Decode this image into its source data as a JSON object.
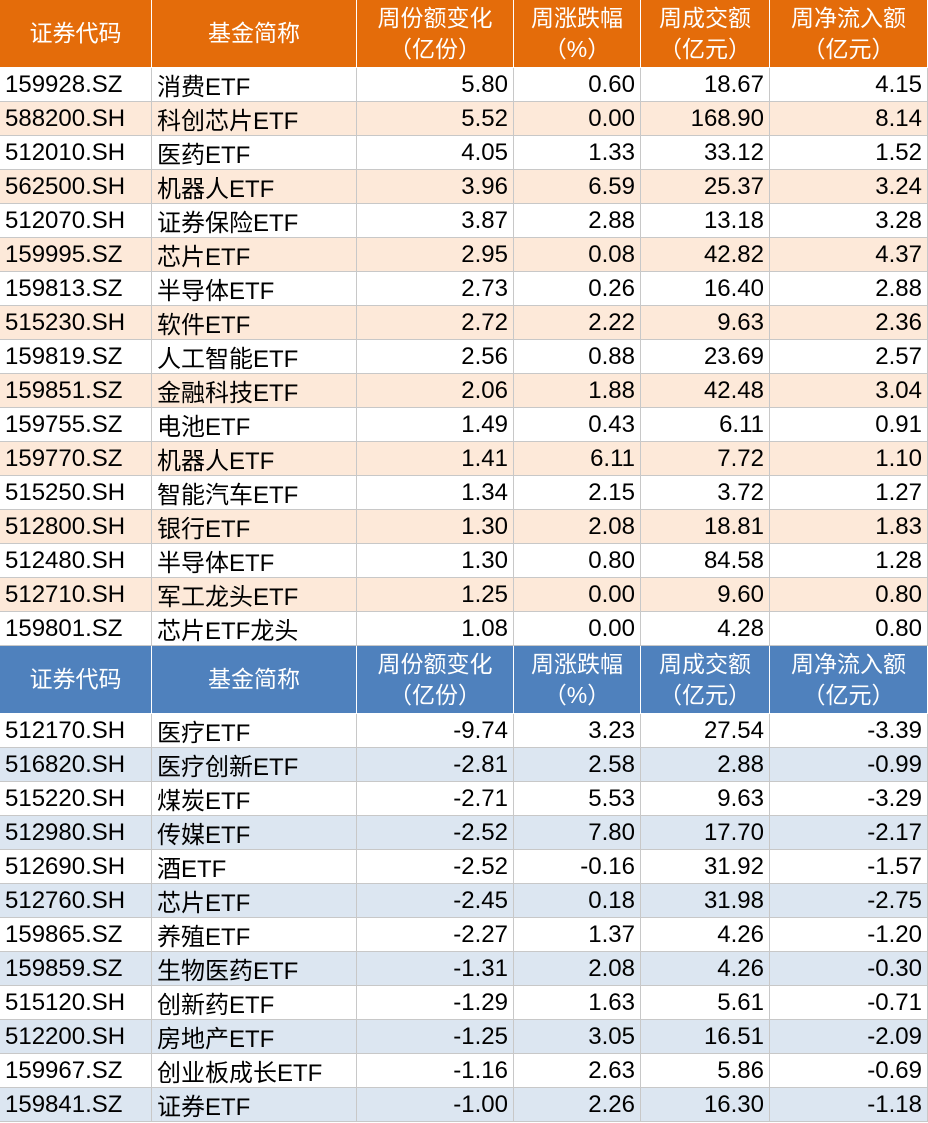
{
  "tables": [
    {
      "header": [
        "证券代码",
        "基金简称",
        [
          "周份额变化",
          "（亿份）"
        ],
        [
          "周涨跌幅",
          "（%）"
        ],
        [
          "周成交额",
          "（亿元）"
        ],
        [
          "周净流入额",
          "（亿元）"
        ]
      ],
      "rows": [
        [
          "159928.SZ",
          "消费ETF",
          "5.80",
          "0.60",
          "18.67",
          "4.15"
        ],
        [
          "588200.SH",
          "科创芯片ETF",
          "5.52",
          "0.00",
          "168.90",
          "8.14"
        ],
        [
          "512010.SH",
          "医药ETF",
          "4.05",
          "1.33",
          "33.12",
          "1.52"
        ],
        [
          "562500.SH",
          "机器人ETF",
          "3.96",
          "6.59",
          "25.37",
          "3.24"
        ],
        [
          "512070.SH",
          "证券保险ETF",
          "3.87",
          "2.88",
          "13.18",
          "3.28"
        ],
        [
          "159995.SZ",
          "芯片ETF",
          "2.95",
          "0.08",
          "42.82",
          "4.37"
        ],
        [
          "159813.SZ",
          "半导体ETF",
          "2.73",
          "0.26",
          "16.40",
          "2.88"
        ],
        [
          "515230.SH",
          "软件ETF",
          "2.72",
          "2.22",
          "9.63",
          "2.36"
        ],
        [
          "159819.SZ",
          "人工智能ETF",
          "2.56",
          "0.88",
          "23.69",
          "2.57"
        ],
        [
          "159851.SZ",
          "金融科技ETF",
          "2.06",
          "1.88",
          "42.48",
          "3.04"
        ],
        [
          "159755.SZ",
          "电池ETF",
          "1.49",
          "0.43",
          "6.11",
          "0.91"
        ],
        [
          "159770.SZ",
          "机器人ETF",
          "1.41",
          "6.11",
          "7.72",
          "1.10"
        ],
        [
          "515250.SH",
          "智能汽车ETF",
          "1.34",
          "2.15",
          "3.72",
          "1.27"
        ],
        [
          "512800.SH",
          "银行ETF",
          "1.30",
          "2.08",
          "18.81",
          "1.83"
        ],
        [
          "512480.SH",
          "半导体ETF",
          "1.30",
          "0.80",
          "84.58",
          "1.28"
        ],
        [
          "512710.SH",
          "军工龙头ETF",
          "1.25",
          "0.00",
          "9.60",
          "0.80"
        ],
        [
          "159801.SZ",
          "芯片ETF龙头",
          "1.08",
          "0.00",
          "4.28",
          "0.80"
        ]
      ]
    },
    {
      "header": [
        "证券代码",
        "基金简称",
        [
          "周份额变化",
          "（亿份）"
        ],
        [
          "周涨跌幅",
          "（%）"
        ],
        [
          "周成交额",
          "（亿元）"
        ],
        [
          "周净流入额",
          "（亿元）"
        ]
      ],
      "rows": [
        [
          "512170.SH",
          "医疗ETF",
          "-9.74",
          "3.23",
          "27.54",
          "-3.39"
        ],
        [
          "516820.SH",
          "医疗创新ETF",
          "-2.81",
          "2.58",
          "2.88",
          "-0.99"
        ],
        [
          "515220.SH",
          "煤炭ETF",
          "-2.71",
          "5.53",
          "9.63",
          "-3.29"
        ],
        [
          "512980.SH",
          "传媒ETF",
          "-2.52",
          "7.80",
          "17.70",
          "-2.17"
        ],
        [
          "512690.SH",
          "酒ETF",
          "-2.52",
          "-0.16",
          "31.92",
          "-1.57"
        ],
        [
          "512760.SH",
          "芯片ETF",
          "-2.45",
          "0.18",
          "31.98",
          "-2.75"
        ],
        [
          "159865.SZ",
          "养殖ETF",
          "-2.27",
          "1.37",
          "4.26",
          "-1.20"
        ],
        [
          "159859.SZ",
          "生物医药ETF",
          "-1.31",
          "2.08",
          "4.26",
          "-0.30"
        ],
        [
          "515120.SH",
          "创新药ETF",
          "-1.29",
          "1.63",
          "5.61",
          "-0.71"
        ],
        [
          "512200.SH",
          "房地产ETF",
          "-1.25",
          "3.05",
          "16.51",
          "-2.09"
        ],
        [
          "159967.SZ",
          "创业板成长ETF",
          "-1.16",
          "2.63",
          "5.86",
          "-0.69"
        ],
        [
          "159841.SZ",
          "证券ETF",
          "-1.00",
          "2.26",
          "16.30",
          "-1.18"
        ]
      ]
    }
  ]
}
